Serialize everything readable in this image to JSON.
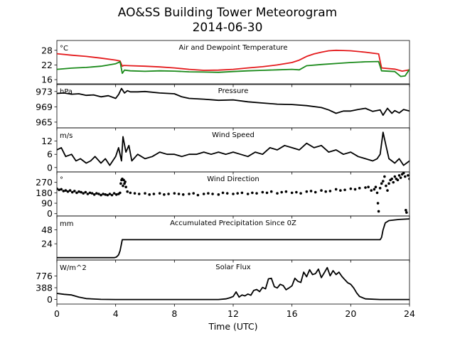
{
  "title": "AO&SS Building Tower Meteorogram",
  "subtitle": "2014-06-30",
  "colors": {
    "temperature": "#e41a1c",
    "dewpoint": "#1a8a1a",
    "line": "#000000"
  },
  "chart_data": {
    "type": "line",
    "title": "AO&SS Building Tower Meteorogram",
    "subtitle": "2014-06-30",
    "xlabel": "Time (UTC)",
    "xlim": [
      0,
      24
    ],
    "xticks": [
      0,
      4,
      8,
      12,
      16,
      20,
      24
    ],
    "grid": false,
    "panels": [
      {
        "id": "temp",
        "label": "Air and Dewpoint Temperature",
        "unit": "°C",
        "ylim": [
          14,
          32
        ],
        "yticks": [
          16,
          22,
          28
        ],
        "style": "line",
        "series": [
          {
            "color": "#e41a1c",
            "x": [
              0,
              1,
              2,
              3,
              4,
              4.3,
              4.45,
              4.55,
              5,
              6,
              7,
              8,
              9,
              10,
              11,
              12,
              13,
              14,
              15,
              16,
              16.5,
              17,
              17.5,
              18,
              18.5,
              19,
              19.5,
              20,
              21,
              21.9,
              22.1,
              23,
              23.5,
              24
            ],
            "y": [
              26.6,
              26,
              25.5,
              24.8,
              24,
              23.6,
              21.5,
              21.8,
              21.7,
              21.5,
              21.2,
              20.8,
              20.2,
              19.8,
              19.9,
              20.2,
              20.8,
              21.3,
              22,
              23,
              24,
              25.5,
              26.5,
              27.2,
              27.8,
              28,
              27.9,
              27.8,
              27.2,
              26.5,
              20.8,
              20.3,
              19.5,
              20
            ]
          },
          {
            "color": "#1a8a1a",
            "x": [
              0,
              1,
              2,
              3,
              4,
              4.3,
              4.45,
              4.6,
              5,
              6,
              7,
              8,
              9,
              10,
              11,
              12,
              13,
              14,
              15,
              16,
              16.5,
              17,
              18,
              19,
              20,
              21,
              21.9,
              22.1,
              23,
              23.4,
              23.7,
              24
            ],
            "y": [
              20.2,
              20.7,
              21,
              21.5,
              22.5,
              23.3,
              18.6,
              19.9,
              19.6,
              19.4,
              19.6,
              19.5,
              19.2,
              19.1,
              19,
              19.3,
              19.6,
              19.8,
              20,
              20.2,
              20,
              21.7,
              22.2,
              22.6,
              23,
              23.3,
              23.4,
              19.6,
              19.3,
              17.3,
              17.5,
              20.2
            ]
          }
        ]
      },
      {
        "id": "pressure",
        "label": "Pressure",
        "unit": "hPa",
        "ylim": [
          963.5,
          975
        ],
        "yticks": [
          965,
          969,
          973
        ],
        "style": "line",
        "series": [
          {
            "color": "#000000",
            "x": [
              0,
              0.5,
              1,
              1.5,
              2,
              2.5,
              3,
              3.5,
              4,
              4.2,
              4.4,
              4.6,
              4.8,
              5,
              5.5,
              6,
              7,
              8,
              8.5,
              9,
              10,
              11,
              12,
              13,
              14,
              15,
              16,
              17,
              18,
              18.5,
              19,
              19.5,
              20,
              20.5,
              21,
              21.5,
              22,
              22.2,
              22.5,
              22.8,
              23,
              23.3,
              23.6,
              24
            ],
            "y": [
              972.5,
              972.6,
              972.3,
              972.4,
              972.0,
              972.1,
              971.6,
              971.9,
              971.2,
              972.2,
              973.8,
              972.6,
              973.2,
              972.9,
              972.9,
              973.0,
              972.6,
              972.4,
              971.6,
              971.2,
              971.0,
              970.7,
              970.8,
              970.3,
              970.0,
              969.7,
              969.6,
              969.3,
              968.8,
              968.2,
              967.3,
              967.9,
              967.9,
              968.3,
              968.6,
              967.8,
              968.2,
              966.8,
              968.6,
              967.3,
              968.0,
              967.4,
              968.3,
              967.9
            ]
          }
        ]
      },
      {
        "id": "speed",
        "label": "Wind Speed",
        "unit": "m/s",
        "ylim": [
          -2,
          18
        ],
        "yticks": [
          0,
          6,
          12
        ],
        "style": "line",
        "series": [
          {
            "color": "#000000",
            "x": [
              0,
              0.3,
              0.6,
              1,
              1.3,
              1.6,
              2,
              2.3,
              2.6,
              3,
              3.3,
              3.6,
              4,
              4.2,
              4.4,
              4.5,
              4.7,
              4.9,
              5.1,
              5.5,
              6,
              6.5,
              7,
              7.5,
              8,
              8.5,
              9,
              9.5,
              10,
              10.5,
              11,
              11.5,
              12,
              12.5,
              13,
              13.5,
              14,
              14.5,
              15,
              15.5,
              16,
              16.5,
              17,
              17.5,
              18,
              18.5,
              19,
              19.5,
              20,
              20.5,
              21,
              21.5,
              21.8,
              22,
              22.2,
              22.4,
              22.6,
              23,
              23.3,
              23.6,
              24
            ],
            "y": [
              8,
              9,
              5,
              6,
              3,
              4,
              2,
              3,
              5,
              2,
              4,
              1,
              5,
              9,
              3,
              14,
              7,
              10,
              3,
              6,
              4,
              5,
              7,
              6,
              6,
              5,
              6,
              6,
              7,
              6,
              7,
              6,
              7,
              6,
              5,
              7,
              6,
              9,
              8,
              10,
              9,
              8,
              11,
              9,
              10,
              7,
              8,
              6,
              7,
              5,
              4,
              3,
              4,
              6,
              16,
              10,
              4,
              2,
              4,
              1,
              3
            ]
          }
        ]
      },
      {
        "id": "direction",
        "label": "Wind Direction",
        "unit": "°",
        "ylim": [
          -20,
          360
        ],
        "yticks": [
          0,
          90,
          180,
          270
        ],
        "style": "dots",
        "series": [
          {
            "color": "#000000",
            "x": [
              0,
              0.15,
              0.3,
              0.45,
              0.6,
              0.75,
              0.9,
              1.05,
              1.2,
              1.35,
              1.5,
              1.65,
              1.8,
              1.95,
              2.1,
              2.25,
              2.4,
              2.55,
              2.7,
              2.85,
              3,
              3.15,
              3.3,
              3.45,
              3.6,
              3.75,
              3.9,
              4.05,
              4.2,
              4.3,
              4.35,
              4.4,
              4.45,
              4.5,
              4.55,
              4.6,
              4.65,
              4.7,
              4.8,
              5,
              5.3,
              5.6,
              6,
              6.3,
              6.6,
              7,
              7.3,
              7.6,
              8,
              8.3,
              8.6,
              9,
              9.3,
              9.6,
              10,
              10.3,
              10.6,
              11,
              11.3,
              11.6,
              12,
              12.3,
              12.6,
              13,
              13.3,
              13.6,
              14,
              14.3,
              14.6,
              15,
              15.3,
              15.6,
              16,
              16.3,
              16.6,
              17,
              17.3,
              17.6,
              18,
              18.3,
              18.6,
              19,
              19.3,
              19.6,
              20,
              20.3,
              20.6,
              21,
              21.2,
              21.4,
              21.6,
              21.7,
              21.8,
              21.85,
              21.9,
              22.0,
              22.1,
              22.2,
              22.3,
              22.4,
              22.5,
              22.6,
              22.7,
              22.8,
              22.9,
              23.0,
              23.1,
              23.2,
              23.3,
              23.4,
              23.5,
              23.6,
              23.7,
              23.75,
              23.8,
              23.9,
              24
            ],
            "y": [
              215,
              205,
              210,
              195,
              200,
              190,
              200,
              185,
              195,
              180,
              190,
              185,
              175,
              185,
              170,
              180,
              175,
              165,
              175,
              170,
              160,
              170,
              165,
              160,
              170,
              160,
              175,
              165,
              170,
              180,
              260,
              290,
              300,
              240,
              290,
              260,
              275,
              230,
              190,
              180,
              175,
              170,
              175,
              165,
              170,
              175,
              165,
              170,
              175,
              170,
              165,
              170,
              175,
              160,
              170,
              175,
              170,
              165,
              180,
              175,
              170,
              175,
              180,
              170,
              180,
              175,
              185,
              180,
              190,
              175,
              185,
              190,
              180,
              185,
              175,
              190,
              195,
              185,
              200,
              190,
              195,
              210,
              200,
              205,
              215,
              210,
              220,
              225,
              230,
              200,
              210,
              230,
              180,
              90,
              20,
              220,
              260,
              280,
              320,
              240,
              200,
              260,
              290,
              300,
              270,
              320,
              300,
              290,
              330,
              310,
              340,
              350,
              320,
              30,
              10,
              330,
              300
            ]
          }
        ]
      },
      {
        "id": "precip",
        "label": "Accumulated Precipitation Since 0Z",
        "unit": "mm",
        "ylim": [
          -4,
          72
        ],
        "yticks": [
          24,
          48
        ],
        "style": "line",
        "series": [
          {
            "color": "#000000",
            "x": [
              0,
              3.9,
              4.05,
              4.2,
              4.3,
              4.45,
              22.0,
              22.1,
              22.2,
              22.35,
              22.6,
              23.3,
              24
            ],
            "y": [
              0,
              0,
              1,
              5,
              12,
              31,
              31,
              35,
              48,
              60,
              64,
              66,
              67
            ]
          }
        ]
      },
      {
        "id": "solar",
        "label": "Solar Flux",
        "unit": "W/m^2",
        "ylim": [
          -150,
          1300
        ],
        "yticks": [
          0,
          388,
          776
        ],
        "style": "line",
        "series": [
          {
            "color": "#000000",
            "x": [
              0,
              0.5,
              1,
              1.5,
              2,
              3,
              4,
              5,
              6,
              7,
              8,
              9,
              10,
              11,
              11.5,
              11.8,
              12,
              12.2,
              12.4,
              12.6,
              12.8,
              13,
              13.2,
              13.4,
              13.6,
              13.8,
              14,
              14.2,
              14.4,
              14.6,
              14.8,
              15,
              15.2,
              15.4,
              15.6,
              15.8,
              16,
              16.2,
              16.4,
              16.6,
              16.8,
              17,
              17.2,
              17.4,
              17.6,
              17.8,
              18,
              18.2,
              18.4,
              18.6,
              18.8,
              19,
              19.2,
              19.4,
              19.6,
              19.8,
              20,
              20.2,
              20.4,
              20.6,
              21,
              22,
              23,
              24
            ],
            "y": [
              200,
              170,
              150,
              80,
              30,
              5,
              0,
              0,
              0,
              0,
              0,
              0,
              0,
              0,
              20,
              60,
              100,
              250,
              80,
              150,
              120,
              180,
              140,
              300,
              330,
              260,
              400,
              350,
              680,
              700,
              420,
              380,
              500,
              460,
              320,
              380,
              450,
              700,
              600,
              560,
              900,
              750,
              980,
              820,
              850,
              1000,
              720,
              880,
              1050,
              780,
              950,
              820,
              900,
              760,
              650,
              550,
              500,
              380,
              220,
              100,
              20,
              0,
              0,
              0
            ]
          }
        ]
      }
    ]
  }
}
